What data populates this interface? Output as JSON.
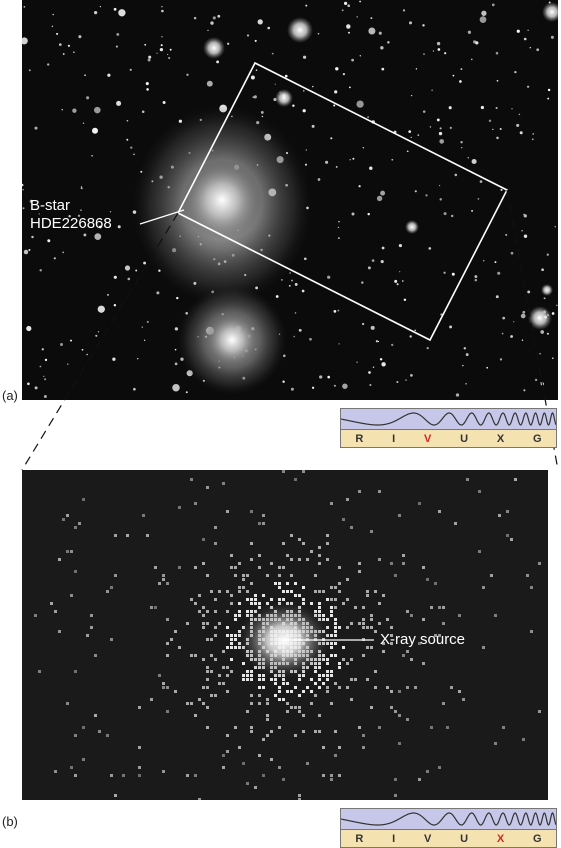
{
  "panel_a": {
    "letter": "(a)",
    "star_label_line1": "B-star",
    "star_label_line2": "HDE226868"
  },
  "panel_b": {
    "letter": "(b)",
    "xray_label": "X-ray source"
  },
  "spectrum_a": {
    "bands": [
      "R",
      "I",
      "V",
      "U",
      "X",
      "G"
    ],
    "active_band": "V"
  },
  "spectrum_b": {
    "bands": [
      "R",
      "I",
      "V",
      "U",
      "X",
      "G"
    ],
    "active_band": "X"
  },
  "colors": {
    "active_band": "#d4261f",
    "wave_bg": "#c7c7ea",
    "band_bg": "#f4e2b0"
  }
}
